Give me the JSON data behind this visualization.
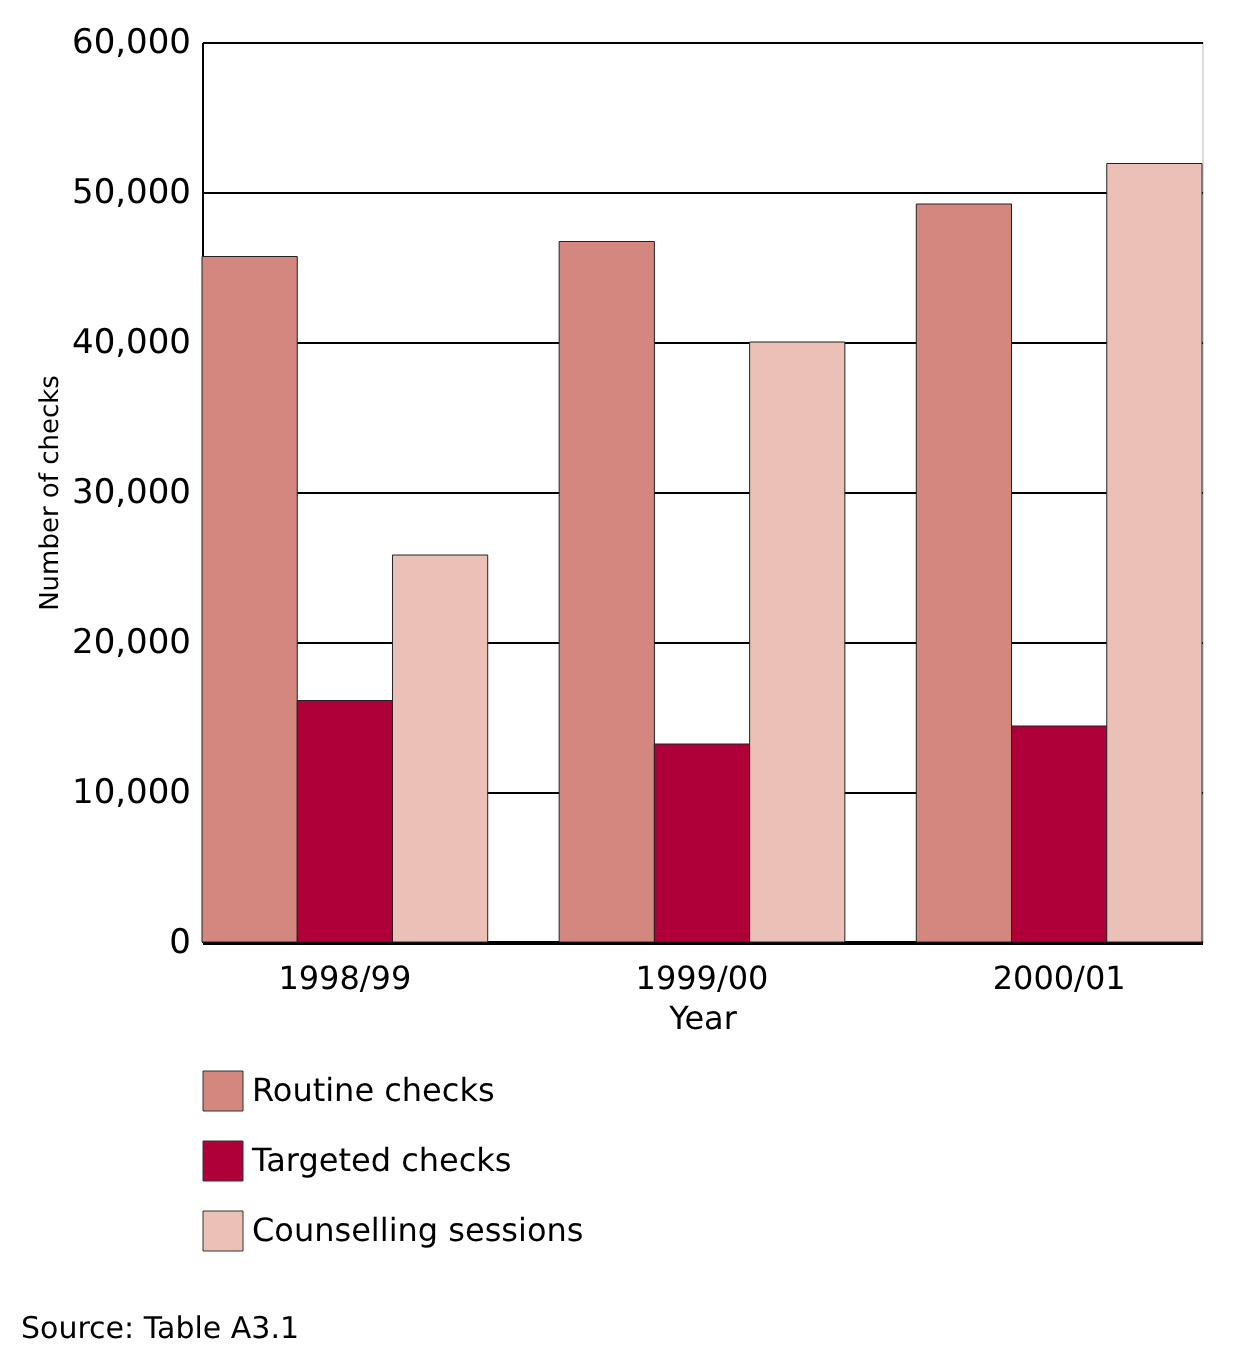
{
  "chart_data": {
    "type": "bar",
    "xlabel": "Year",
    "ylabel": "Number of checks",
    "categories": [
      "1998/99",
      "1999/00",
      "2000/01"
    ],
    "series": [
      {
        "name": "Routine checks",
        "color": "#d4877e",
        "values": [
          45700,
          46700,
          49200
        ]
      },
      {
        "name": "Targeted checks",
        "color": "#b0003a",
        "values": [
          16100,
          13200,
          14400
        ]
      },
      {
        "name": "Counselling sessions",
        "color": "#ebc1b7",
        "values": [
          25800,
          40000,
          51900
        ]
      }
    ],
    "ylim": [
      0,
      60000
    ],
    "yticks": [
      0,
      {
        "value": 10000,
        "label": "10,000"
      },
      {
        "value": 20000,
        "label": "20,000"
      },
      {
        "value": 30000,
        "label": "30,000"
      },
      {
        "value": 40000,
        "label": "40,000"
      },
      {
        "value": 50000,
        "label": "50,000"
      },
      {
        "value": 60000,
        "label": "60,000"
      }
    ],
    "grid": "y",
    "legend": "bottom",
    "annotations": [
      "Source: Table A3.1"
    ]
  }
}
